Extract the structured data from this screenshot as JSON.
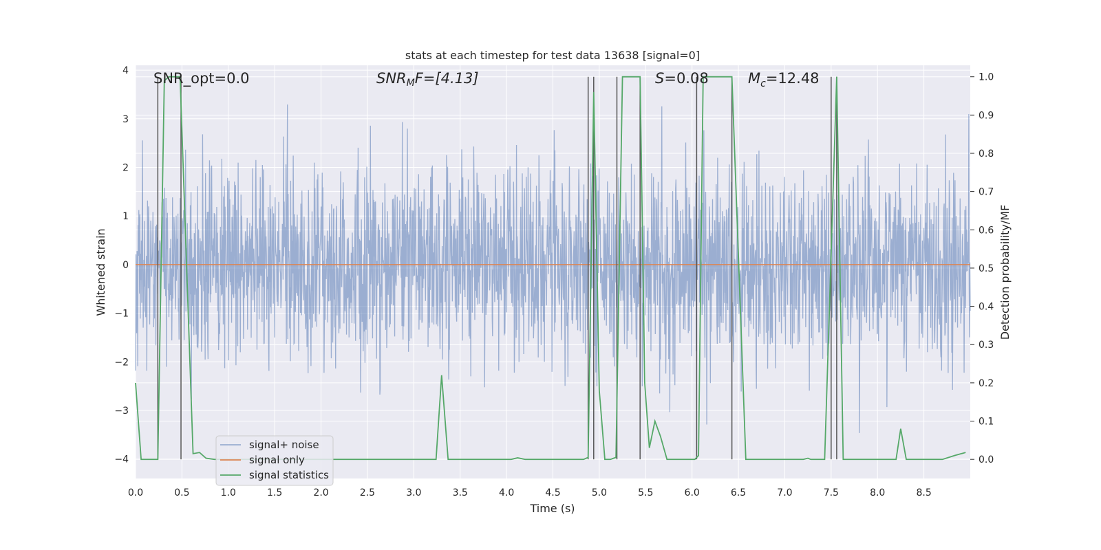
{
  "chart_data": {
    "type": "line",
    "title": "stats at each timestep for test data 13638 [signal=0]",
    "xlabel": "Time (s)",
    "ylabel": "Whitened strain",
    "y2label": "Detection probability/MF",
    "xlim": [
      0.0,
      9.0
    ],
    "ylim": [
      -4.4,
      4.1
    ],
    "y2lim": [
      -0.05,
      1.03
    ],
    "xticks": [
      "0.0",
      "0.5",
      "1.0",
      "1.5",
      "2.0",
      "2.5",
      "3.0",
      "3.5",
      "4.0",
      "4.5",
      "5.0",
      "5.5",
      "6.0",
      "6.5",
      "7.0",
      "7.5",
      "8.0",
      "8.5"
    ],
    "yticks": [
      "4",
      "3",
      "2",
      "1",
      "0",
      "−1",
      "−2",
      "−3",
      "−4"
    ],
    "y2ticks": [
      "1.0",
      "0.9",
      "0.8",
      "0.7",
      "0.6",
      "0.5",
      "0.4",
      "0.3",
      "0.2",
      "0.1",
      "0.0"
    ],
    "noise_model": {
      "samples": 2304,
      "sigma": 1.0,
      "seed": 13638,
      "clip": [
        -4.0,
        3.3
      ]
    },
    "series": [
      {
        "name": "signal+ noise",
        "color": "#4c72b0",
        "opacity": 0.5,
        "values": "gaussian white noise, sigma approx 1, 2304 samples (see noise_model)"
      },
      {
        "name": "signal only",
        "color": "#dd8452",
        "values": [
          [
            0.0,
            0.0
          ],
          [
            9.0,
            0.0
          ]
        ]
      },
      {
        "name": "signal statistics",
        "color": "#55a868",
        "axis": "right",
        "values": [
          [
            0.0,
            0.2
          ],
          [
            0.06,
            0.0
          ],
          [
            0.24,
            0.0
          ],
          [
            0.31,
            0.99
          ],
          [
            0.36,
            1.0
          ],
          [
            0.48,
            1.0
          ],
          [
            0.62,
            0.015
          ],
          [
            0.69,
            0.018
          ],
          [
            0.76,
            0.003
          ],
          [
            0.85,
            0.0
          ],
          [
            3.24,
            0.0
          ],
          [
            3.3,
            0.22
          ],
          [
            3.37,
            0.0
          ],
          [
            4.05,
            0.0
          ],
          [
            4.12,
            0.004
          ],
          [
            4.2,
            0.0
          ],
          [
            4.83,
            0.0
          ],
          [
            4.88,
            0.005
          ],
          [
            4.94,
            0.96
          ],
          [
            5.0,
            0.18
          ],
          [
            5.06,
            0.0
          ],
          [
            5.12,
            0.0
          ],
          [
            5.18,
            0.005
          ],
          [
            5.25,
            1.0
          ],
          [
            5.44,
            1.0
          ],
          [
            5.49,
            0.2
          ],
          [
            5.54,
            0.03
          ],
          [
            5.6,
            0.1
          ],
          [
            5.66,
            0.06
          ],
          [
            5.73,
            0.0
          ],
          [
            6.03,
            0.0
          ],
          [
            6.07,
            0.01
          ],
          [
            6.12,
            1.0
          ],
          [
            6.43,
            1.0
          ],
          [
            6.58,
            0.0
          ],
          [
            7.2,
            0.0
          ],
          [
            7.25,
            0.003
          ],
          [
            7.28,
            0.0
          ],
          [
            7.43,
            0.0
          ],
          [
            7.56,
            1.0
          ],
          [
            7.63,
            0.0
          ],
          [
            7.97,
            0.0
          ],
          [
            8.2,
            0.0
          ],
          [
            8.25,
            0.08
          ],
          [
            8.31,
            0.0
          ],
          [
            8.7,
            0.0
          ],
          [
            8.83,
            0.01
          ],
          [
            8.95,
            0.018
          ]
        ]
      }
    ],
    "vlines": [
      0.24,
      0.49,
      4.88,
      4.94,
      5.19,
      5.44,
      6.05,
      6.43,
      7.5,
      7.56
    ],
    "vline_color": "#555555",
    "annotations": {
      "snr_opt": "SNR_opt=0.0",
      "snr_mf_var": "SNR",
      "snr_mf_sub": "M",
      "snr_mf_rest": "F=[4.13]",
      "s_var": "S",
      "s_rest": "=0.08",
      "mc_var": "M",
      "mc_sub": "c",
      "mc_rest": "=12.48"
    },
    "legend": {
      "position": "lower-left",
      "entries": [
        {
          "label": "signal+ noise",
          "color": "#4c72b0",
          "opacity": 0.5
        },
        {
          "label": "signal only",
          "color": "#dd8452",
          "opacity": 1
        },
        {
          "label": "signal statistics",
          "color": "#55a868",
          "opacity": 1
        }
      ]
    },
    "colors": {
      "background": "#eaeaf2",
      "grid": "#ffffff",
      "text": "#262626"
    }
  }
}
